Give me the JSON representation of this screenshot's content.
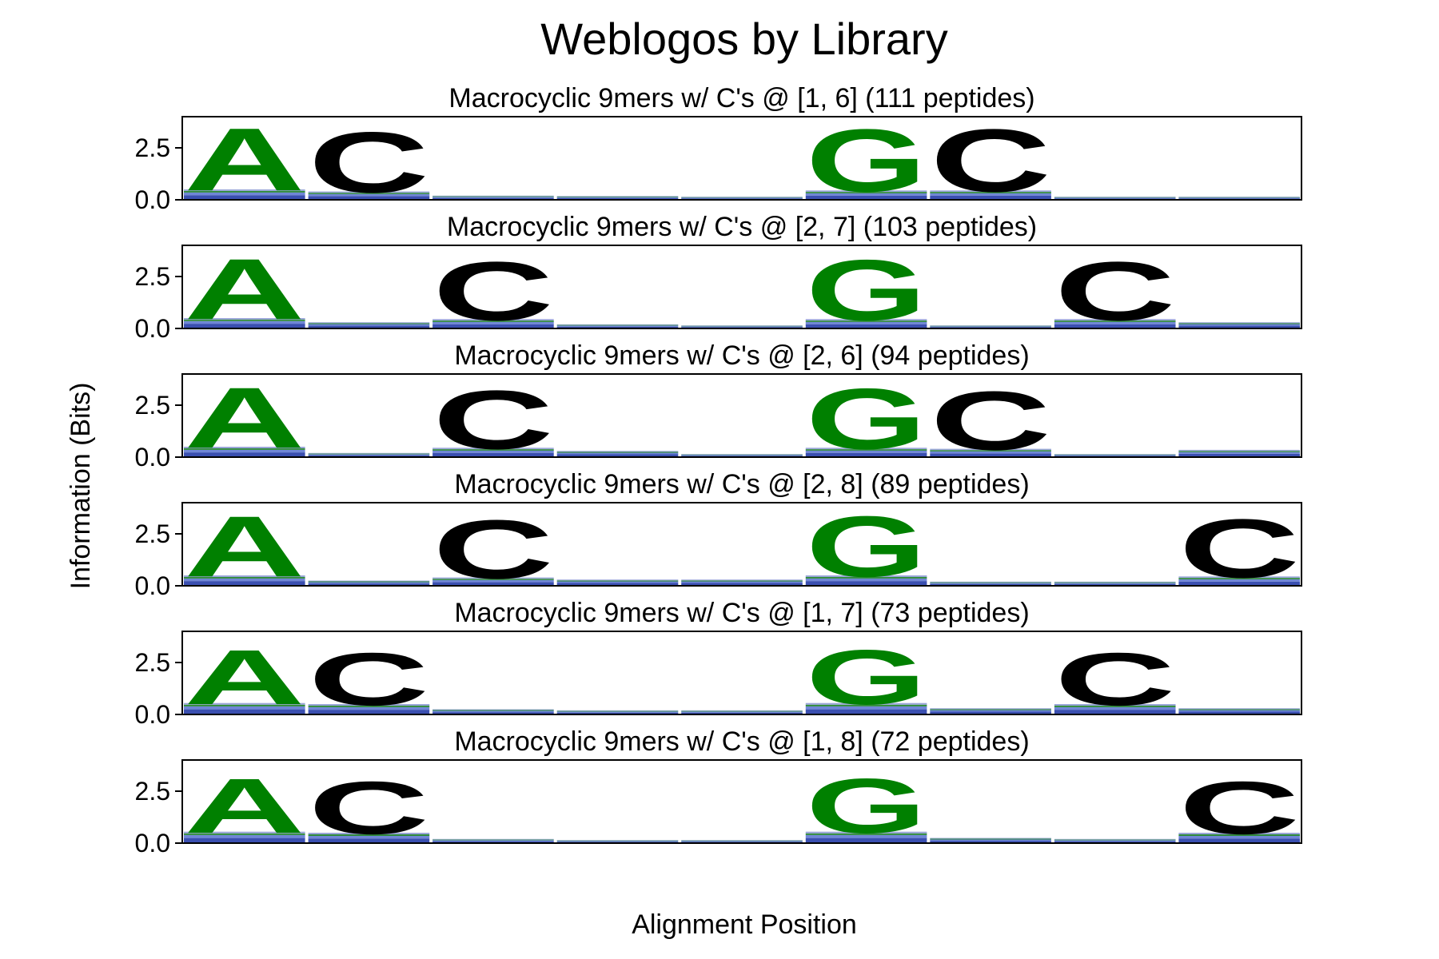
{
  "figure": {
    "title": "Weblogos by Library",
    "ylabel": "Information (Bits)",
    "xlabel": "Alignment Position"
  },
  "colors": {
    "A": "#008000",
    "G": "#008000",
    "C": "#000000",
    "background_stack": "#3a4fb0",
    "frame": "#000000"
  },
  "chart_data": [
    {
      "type": "sequence_logo",
      "title": "Macrocyclic 9mers w/ C's @ [1, 6] (111 peptides)",
      "ylim": [
        0,
        4.0
      ],
      "yticks": [
        "0.0",
        "2.5"
      ],
      "positions": 9,
      "letters": [
        {
          "pos": 1,
          "letter": "A",
          "height": 3.1
        },
        {
          "pos": 2,
          "letter": "C",
          "height": 3.0
        },
        {
          "pos": 6,
          "letter": "G",
          "height": 3.1
        },
        {
          "pos": 7,
          "letter": "C",
          "height": 3.1
        }
      ],
      "background": [
        0.5,
        0.4,
        0.2,
        0.18,
        0.15,
        0.45,
        0.45,
        0.15,
        0.15
      ]
    },
    {
      "type": "sequence_logo",
      "title": "Macrocyclic 9mers w/ C's @ [2, 7] (103 peptides)",
      "ylim": [
        0,
        4.0
      ],
      "yticks": [
        "0.0",
        "2.5"
      ],
      "positions": 9,
      "letters": [
        {
          "pos": 1,
          "letter": "A",
          "height": 3.0
        },
        {
          "pos": 3,
          "letter": "C",
          "height": 2.9
        },
        {
          "pos": 6,
          "letter": "G",
          "height": 3.0
        },
        {
          "pos": 8,
          "letter": "C",
          "height": 2.9
        }
      ],
      "background": [
        0.5,
        0.3,
        0.45,
        0.2,
        0.15,
        0.45,
        0.15,
        0.45,
        0.3
      ]
    },
    {
      "type": "sequence_logo",
      "title": "Macrocyclic 9mers w/ C's @ [2, 6] (94 peptides)",
      "ylim": [
        0,
        4.0
      ],
      "yticks": [
        "0.0",
        "2.5"
      ],
      "positions": 9,
      "letters": [
        {
          "pos": 1,
          "letter": "A",
          "height": 3.0
        },
        {
          "pos": 3,
          "letter": "C",
          "height": 2.9
        },
        {
          "pos": 6,
          "letter": "G",
          "height": 3.0
        },
        {
          "pos": 7,
          "letter": "C",
          "height": 2.9
        }
      ],
      "background": [
        0.5,
        0.2,
        0.45,
        0.3,
        0.15,
        0.45,
        0.4,
        0.15,
        0.35
      ]
    },
    {
      "type": "sequence_logo",
      "title": "Macrocyclic 9mers w/ C's @ [2, 8] (89 peptides)",
      "ylim": [
        0,
        4.0
      ],
      "yticks": [
        "0.0",
        "2.5"
      ],
      "positions": 9,
      "letters": [
        {
          "pos": 1,
          "letter": "A",
          "height": 3.0
        },
        {
          "pos": 3,
          "letter": "C",
          "height": 2.9
        },
        {
          "pos": 6,
          "letter": "G",
          "height": 3.0
        },
        {
          "pos": 9,
          "letter": "C",
          "height": 2.9
        }
      ],
      "background": [
        0.5,
        0.25,
        0.4,
        0.3,
        0.3,
        0.5,
        0.2,
        0.2,
        0.45
      ]
    },
    {
      "type": "sequence_logo",
      "title": "Macrocyclic 9mers w/ C's @ [1, 7] (73 peptides)",
      "ylim": [
        0,
        4.0
      ],
      "yticks": [
        "0.0",
        "2.5"
      ],
      "positions": 9,
      "letters": [
        {
          "pos": 1,
          "letter": "A",
          "height": 2.7
        },
        {
          "pos": 2,
          "letter": "C",
          "height": 2.6
        },
        {
          "pos": 6,
          "letter": "G",
          "height": 2.7
        },
        {
          "pos": 8,
          "letter": "C",
          "height": 2.6
        }
      ],
      "background": [
        0.55,
        0.5,
        0.25,
        0.2,
        0.2,
        0.55,
        0.3,
        0.5,
        0.3
      ]
    },
    {
      "type": "sequence_logo",
      "title": "Macrocyclic 9mers w/ C's @ [1, 8] (72 peptides)",
      "ylim": [
        0,
        4.0
      ],
      "yticks": [
        "0.0",
        "2.5"
      ],
      "positions": 9,
      "letters": [
        {
          "pos": 1,
          "letter": "A",
          "height": 2.7
        },
        {
          "pos": 2,
          "letter": "C",
          "height": 2.6
        },
        {
          "pos": 6,
          "letter": "G",
          "height": 2.7
        },
        {
          "pos": 9,
          "letter": "C",
          "height": 2.6
        }
      ],
      "background": [
        0.55,
        0.5,
        0.2,
        0.15,
        0.15,
        0.55,
        0.25,
        0.2,
        0.5
      ]
    }
  ]
}
